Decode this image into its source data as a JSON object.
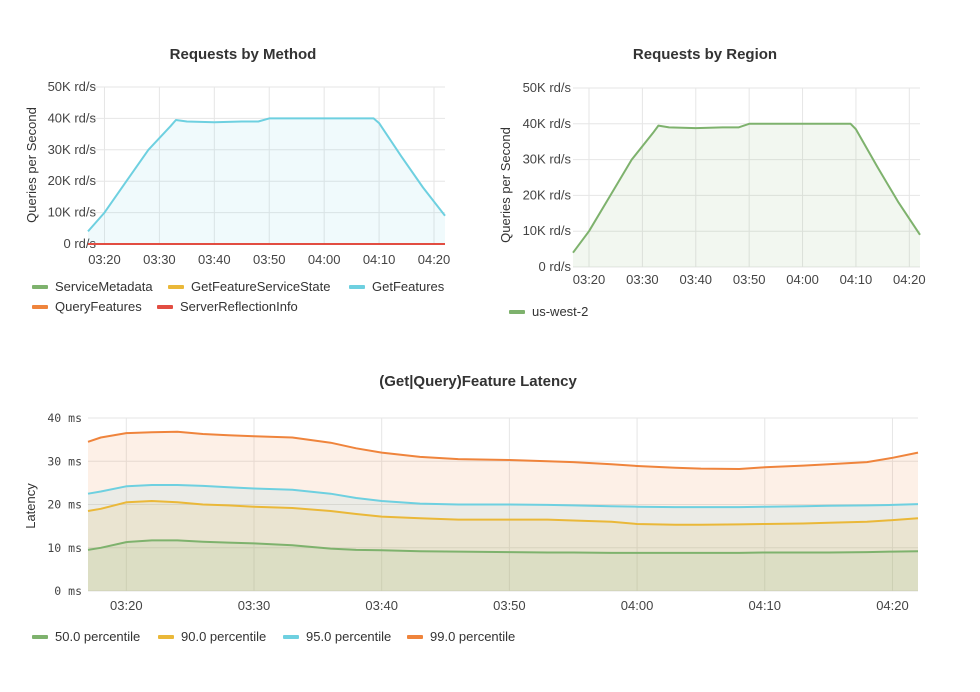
{
  "chart_data": [
    {
      "type": "area",
      "title": "Requests by Method",
      "ylabel": "Queries per Second",
      "ylim": [
        0,
        50000
      ],
      "y_ticks": [
        "0 rd/s",
        "10K rd/s",
        "20K rd/s",
        "30K rd/s",
        "40K rd/s",
        "50K rd/s"
      ],
      "x_ticks": [
        "03:20",
        "03:30",
        "03:40",
        "03:50",
        "04:00",
        "04:10",
        "04:20"
      ],
      "x": [
        "03:17",
        "03:20",
        "03:24",
        "03:28",
        "03:32",
        "03:33",
        "03:35",
        "03:40",
        "03:45",
        "03:48",
        "03:50",
        "03:55",
        "04:00",
        "04:05",
        "04:09",
        "04:10",
        "04:14",
        "04:18",
        "04:22"
      ],
      "legend": [
        "ServiceMetadata",
        "GetFeatureServiceState",
        "GetFeatures",
        "QueryFeatures",
        "ServerReflectionInfo"
      ],
      "legend_colors": [
        "#7eb26d",
        "#eab839",
        "#6ed0e0",
        "#ef843c",
        "#e24d42"
      ],
      "series": [
        {
          "name": "GetFeatures",
          "color": "#6ed0e0",
          "values": [
            4000,
            10000,
            20000,
            30000,
            37500,
            39500,
            39000,
            38800,
            39000,
            39000,
            40000,
            40000,
            40000,
            40000,
            40000,
            38500,
            28000,
            18000,
            9000
          ]
        },
        {
          "name": "ServerReflectionInfo",
          "color": "#e24d42",
          "values": [
            0,
            0,
            0,
            0,
            0,
            0,
            0,
            0,
            0,
            0,
            0,
            0,
            0,
            0,
            0,
            0,
            0,
            0,
            0
          ]
        }
      ]
    },
    {
      "type": "area",
      "title": "Requests by Region",
      "ylabel": "Queries per Second",
      "ylim": [
        0,
        50000
      ],
      "y_ticks": [
        "0 rd/s",
        "10K rd/s",
        "20K rd/s",
        "30K rd/s",
        "40K rd/s",
        "50K rd/s"
      ],
      "x_ticks": [
        "03:20",
        "03:30",
        "03:40",
        "03:50",
        "04:00",
        "04:10",
        "04:20"
      ],
      "x": [
        "03:17",
        "03:20",
        "03:24",
        "03:28",
        "03:32",
        "03:33",
        "03:35",
        "03:40",
        "03:45",
        "03:48",
        "03:50",
        "03:55",
        "04:00",
        "04:05",
        "04:09",
        "04:10",
        "04:14",
        "04:18",
        "04:22"
      ],
      "legend": [
        "us-west-2"
      ],
      "legend_colors": [
        "#7eb26d"
      ],
      "series": [
        {
          "name": "us-west-2",
          "color": "#7eb26d",
          "values": [
            4000,
            10000,
            20000,
            30000,
            37500,
            39500,
            39000,
            38800,
            39000,
            39000,
            40000,
            40000,
            40000,
            40000,
            40000,
            38500,
            28000,
            18000,
            9000
          ]
        }
      ]
    },
    {
      "type": "area",
      "title": "(Get|Query)Feature Latency",
      "ylabel": "Latency",
      "ylim": [
        0,
        40
      ],
      "y_ticks": [
        "0 ms",
        "10 ms",
        "20 ms",
        "30 ms",
        "40 ms"
      ],
      "x_ticks": [
        "03:20",
        "03:30",
        "03:40",
        "03:50",
        "04:00",
        "04:10",
        "04:20"
      ],
      "x": [
        "03:17",
        "03:18",
        "03:20",
        "03:22",
        "03:24",
        "03:26",
        "03:28",
        "03:30",
        "03:33",
        "03:36",
        "03:38",
        "03:40",
        "03:43",
        "03:46",
        "03:50",
        "03:53",
        "03:55",
        "03:58",
        "04:00",
        "04:03",
        "04:05",
        "04:08",
        "04:10",
        "04:13",
        "04:15",
        "04:18",
        "04:20",
        "04:22"
      ],
      "legend": [
        "50.0 percentile",
        "90.0 percentile",
        "95.0 percentile",
        "99.0 percentile"
      ],
      "series": [
        {
          "name": "50.0 percentile",
          "color": "#7eb26d",
          "values": [
            9.5,
            10,
            11.3,
            11.7,
            11.7,
            11.4,
            11.2,
            11.0,
            10.6,
            9.8,
            9.5,
            9.4,
            9.2,
            9.1,
            9.0,
            8.9,
            8.9,
            8.8,
            8.8,
            8.8,
            8.8,
            8.8,
            8.9,
            8.9,
            8.9,
            9.0,
            9.1,
            9.2
          ]
        },
        {
          "name": "90.0 percentile",
          "color": "#eab839",
          "values": [
            18.5,
            19,
            20.5,
            20.8,
            20.5,
            20.0,
            19.8,
            19.5,
            19.2,
            18.5,
            17.8,
            17.2,
            16.8,
            16.5,
            16.5,
            16.5,
            16.3,
            16.0,
            15.5,
            15.3,
            15.3,
            15.4,
            15.5,
            15.6,
            15.8,
            16.0,
            16.4,
            16.8
          ]
        },
        {
          "name": "95.0 percentile",
          "color": "#6ed0e0",
          "values": [
            22.5,
            23,
            24.2,
            24.5,
            24.5,
            24.3,
            24.0,
            23.7,
            23.4,
            22.5,
            21.5,
            20.8,
            20.2,
            20.0,
            20.0,
            19.9,
            19.8,
            19.6,
            19.5,
            19.4,
            19.4,
            19.4,
            19.5,
            19.6,
            19.7,
            19.8,
            19.9,
            20.1
          ]
        },
        {
          "name": "99.0 percentile",
          "color": "#ef843c",
          "values": [
            34.5,
            35.5,
            36.5,
            36.7,
            36.8,
            36.3,
            36.0,
            35.8,
            35.5,
            34.3,
            33.0,
            32.0,
            31.0,
            30.5,
            30.3,
            30.0,
            29.8,
            29.3,
            28.9,
            28.5,
            28.3,
            28.2,
            28.6,
            29.0,
            29.3,
            29.8,
            30.8,
            32.0
          ]
        }
      ]
    }
  ]
}
